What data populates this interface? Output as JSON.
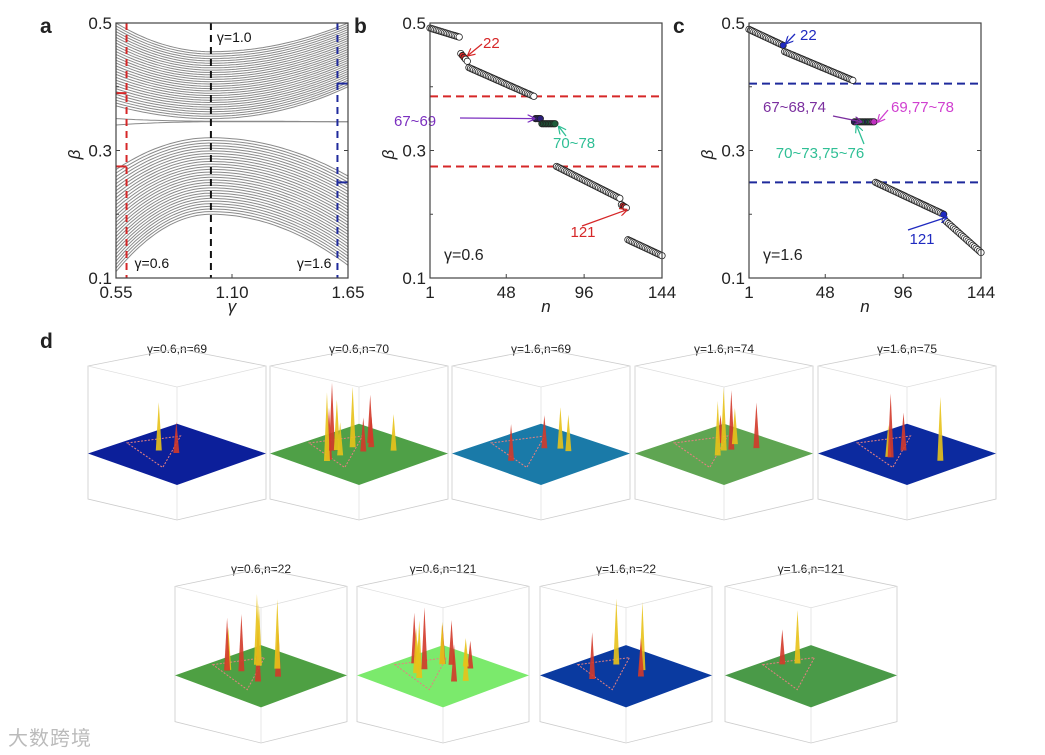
{
  "watermark": "大数跨境",
  "chart_data": [
    {
      "panel": "a",
      "type": "line",
      "xlabel": "γ",
      "ylabel": "β",
      "xlim": [
        0.55,
        1.65
      ],
      "ylim": [
        0.1,
        0.5
      ],
      "xticks": [
        "0.55",
        "1.10",
        "1.65"
      ],
      "yticks": [
        "0.1",
        "0.3",
        "0.5"
      ],
      "bands": [
        {
          "name": "upper",
          "count": 30,
          "center_at_1": [
            0.35,
            0.455
          ],
          "left_end": [
            0.37,
            0.5
          ],
          "right_end": [
            0.4,
            0.5
          ]
        },
        {
          "name": "lower",
          "count": 30,
          "center_at_1": [
            0.2,
            0.32
          ],
          "left_end": [
            0.11,
            0.27
          ],
          "right_end": [
            0.12,
            0.26
          ]
        },
        {
          "name": "mid",
          "count": 2,
          "center_at_1": [
            0.345,
            0.346
          ],
          "left_end": [
            0.34,
            0.35
          ],
          "right_end": [
            0.345,
            0.345
          ]
        }
      ],
      "markers": [
        {
          "gamma": 0.6,
          "label": "γ=0.6",
          "color": "#d62728",
          "gap": [
            0.275,
            0.39
          ]
        },
        {
          "gamma": 1.0,
          "label": "γ=1.0",
          "color": "#111111"
        },
        {
          "gamma": 1.6,
          "label": "γ=1.6",
          "color": "#1f2a9c",
          "gap": [
            0.25,
            0.405
          ]
        }
      ]
    },
    {
      "panel": "b",
      "type": "scatter",
      "xlabel": "n",
      "ylabel": "β",
      "xlim": [
        1,
        144
      ],
      "ylim": [
        0.1,
        0.5
      ],
      "xticks": [
        "1",
        "48",
        "96",
        "144"
      ],
      "yticks": [
        "0.1",
        "0.3",
        "0.5"
      ],
      "gamma_label": "γ=0.6",
      "segments": [
        [
          1,
          19,
          0.492,
          0.478
        ],
        [
          20,
          24,
          0.452,
          0.44
        ],
        [
          25,
          65,
          0.43,
          0.385
        ],
        [
          66,
          69,
          0.35,
          0.35
        ],
        [
          70,
          78,
          0.342,
          0.342
        ],
        [
          79,
          118,
          0.275,
          0.225
        ],
        [
          119,
          122,
          0.215,
          0.21
        ],
        [
          123,
          144,
          0.16,
          0.135
        ]
      ],
      "gap_lines": [
        0.385,
        0.275
      ],
      "gap_color": "#d62728",
      "highlights": [
        {
          "n": [
            21,
            22
          ],
          "color": "#d62728",
          "label": "22"
        },
        {
          "n": [
            66,
            67,
            68,
            69
          ],
          "color": "#2b1e7a",
          "label": "67~69",
          "label_color": "#7b2fbf"
        },
        {
          "n": [
            70,
            71,
            72,
            73,
            74,
            75,
            76,
            77,
            78
          ],
          "color": "#1e5c3a",
          "label": "70~78",
          "label_color": "#2fbf95"
        },
        {
          "n": [
            120,
            121
          ],
          "color": "#d62728",
          "label": "121"
        }
      ]
    },
    {
      "panel": "c",
      "type": "scatter",
      "xlabel": "n",
      "ylabel": "β",
      "xlim": [
        1,
        144
      ],
      "ylim": [
        0.1,
        0.5
      ],
      "xticks": [
        "1",
        "48",
        "96",
        "144"
      ],
      "yticks": [
        "0.1",
        "0.3",
        "0.5"
      ],
      "gamma_label": "γ=1.6",
      "segments": [
        [
          1,
          22,
          0.49,
          0.465
        ],
        [
          23,
          65,
          0.455,
          0.41
        ],
        [
          66,
          78,
          0.345,
          0.345
        ],
        [
          79,
          121,
          0.25,
          0.2
        ],
        [
          122,
          144,
          0.19,
          0.14
        ]
      ],
      "gap_lines": [
        0.405,
        0.25
      ],
      "gap_color": "#1f2a9c",
      "highlights": [
        {
          "n": [
            22
          ],
          "color": "#1f2ac0",
          "label": "22"
        },
        {
          "n": [
            66,
            67,
            68,
            74
          ],
          "color": "#2b1e7a",
          "label": "67~68,74",
          "label_color": "#7b2f9f"
        },
        {
          "n": [
            70,
            71,
            72,
            73,
            75,
            76
          ],
          "color": "#1e6c4a",
          "label": "70~73,75~76",
          "label_color": "#2fbf95"
        },
        {
          "n": [
            69,
            77,
            78
          ],
          "color": "#c030c0",
          "label": "69,77~78",
          "label_color": "#d040d0"
        },
        {
          "n": [
            121
          ],
          "color": "#1f2ac0",
          "label": "121"
        }
      ]
    }
  ],
  "panel_d": {
    "label": "d",
    "thumbnails": [
      {
        "title": "γ=0.6,n=69",
        "plane": "#0c1f9a",
        "peaks": 2
      },
      {
        "title": "γ=0.6,n=70",
        "plane": "#4fa047",
        "peaks": 10
      },
      {
        "title": "γ=1.6,n=69",
        "plane": "#1a7aa8",
        "peaks": 4
      },
      {
        "title": "γ=1.6,n=74",
        "plane": "#5fa552",
        "peaks": 6
      },
      {
        "title": "γ=1.6,n=75",
        "plane": "#0c2a9f",
        "peaks": 4
      },
      {
        "title": "γ=0.6,n=22",
        "plane": "#4ea043",
        "peaks": 8
      },
      {
        "title": "γ=0.6,n=121",
        "plane": "#7bea6c",
        "peaks": 12
      },
      {
        "title": "γ=1.6,n=22",
        "plane": "#0a3aa0",
        "peaks": 4
      },
      {
        "title": "γ=1.6,n=121",
        "plane": "#4a9a48",
        "peaks": 2
      }
    ]
  }
}
